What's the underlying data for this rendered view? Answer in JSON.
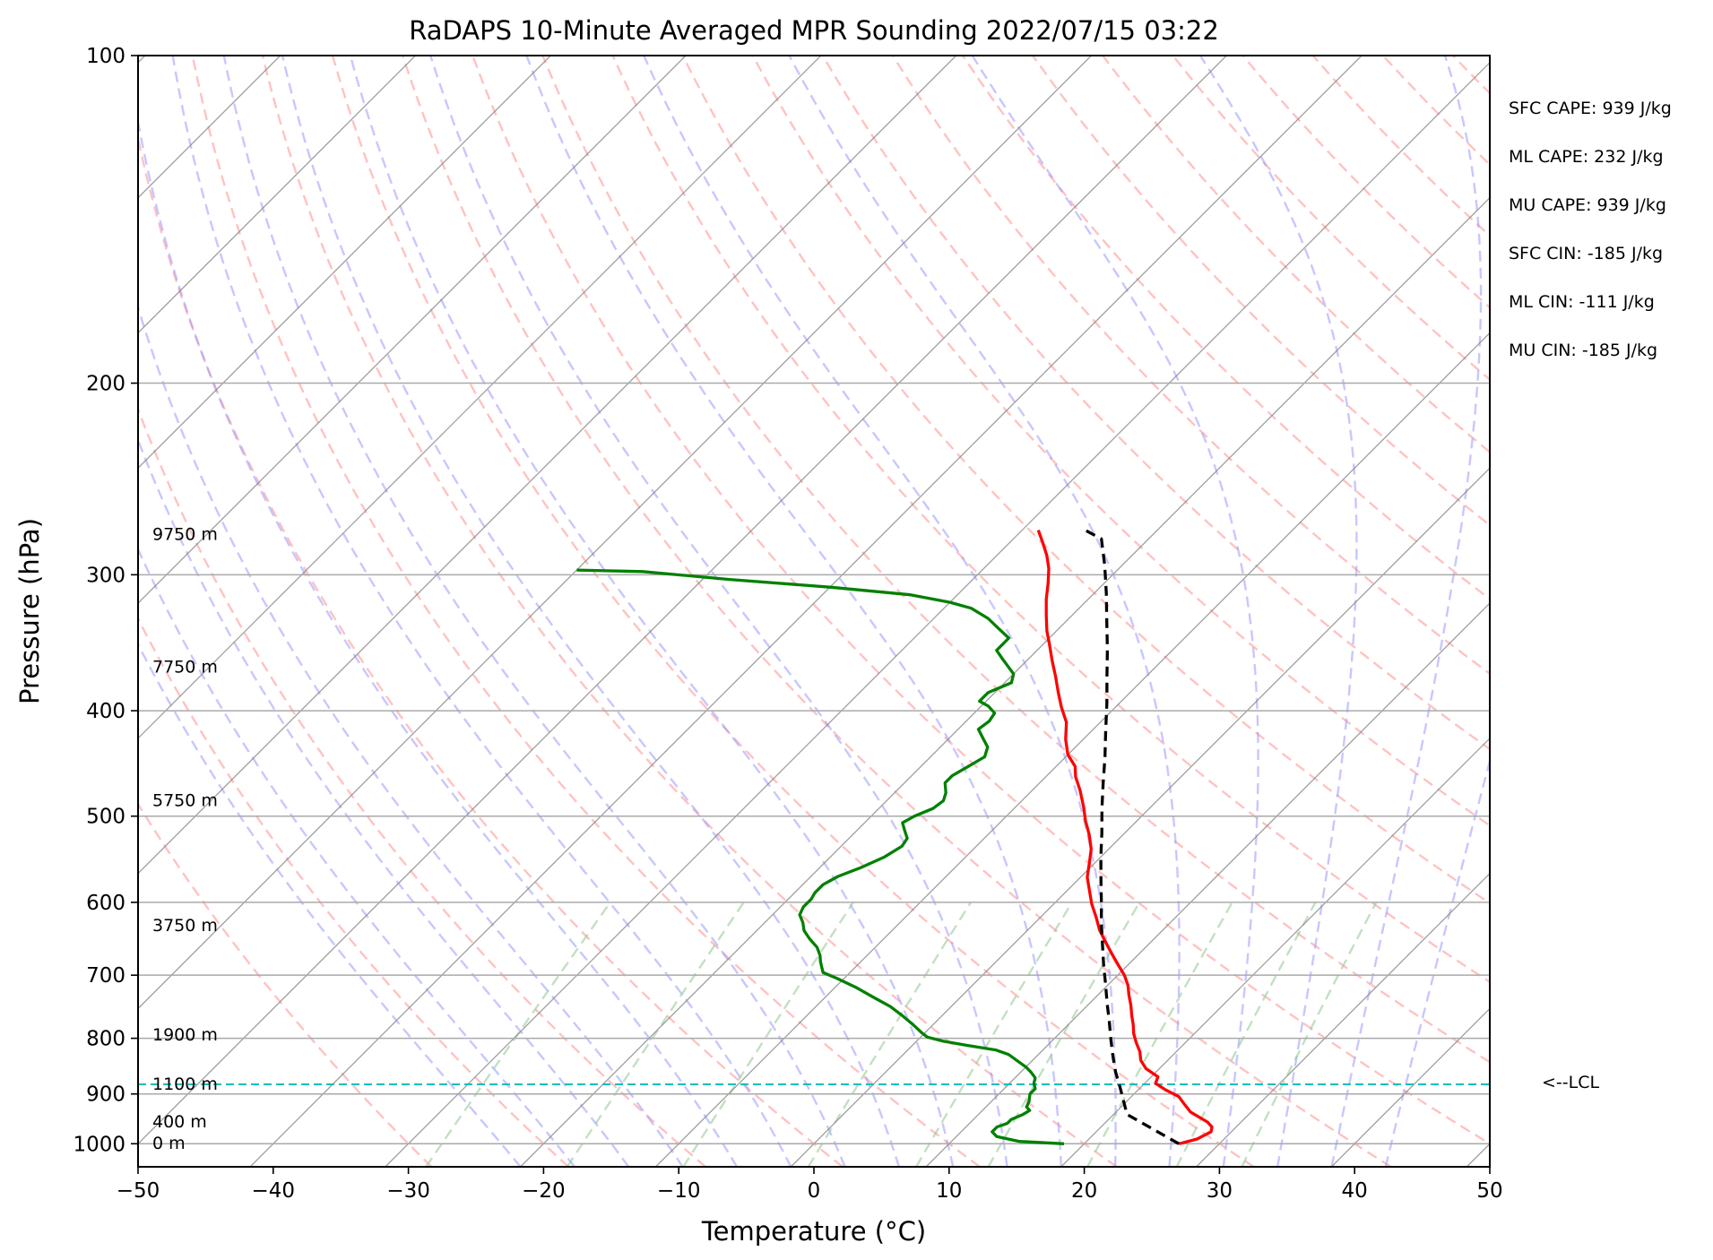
{
  "chart_data": {
    "type": "line",
    "subtype": "skew-t log-p sounding",
    "title": "RaDAPS 10-Minute Averaged MPR Sounding 2022/07/15 03:22",
    "xlabel": "Temperature (°C)",
    "ylabel": "Pressure (hPa)",
    "xlim": [
      -50,
      50
    ],
    "ylim": [
      1050,
      100
    ],
    "y_scale": "log",
    "x_ticks": [
      "−50",
      "−40",
      "−30",
      "−20",
      "−10",
      "0",
      "10",
      "20",
      "30",
      "40",
      "50"
    ],
    "y_ticks": [
      "100",
      "200",
      "300",
      "400",
      "500",
      "600",
      "700",
      "800",
      "900",
      "1000"
    ],
    "grid": true,
    "series": [
      {
        "name": "",
        "role": "temperature",
        "color": "#ff0000",
        "style": "solid",
        "points": [
          [
            27.0,
            1000
          ],
          [
            28.0,
            990
          ],
          [
            28.5,
            975
          ],
          [
            28.2,
            965
          ],
          [
            27.5,
            955
          ],
          [
            26.5,
            945
          ],
          [
            25.5,
            935
          ],
          [
            24.5,
            920
          ],
          [
            23.5,
            905
          ],
          [
            22.0,
            892
          ],
          [
            20.8,
            880
          ],
          [
            20.5,
            868
          ],
          [
            19.0,
            853
          ],
          [
            18.0,
            838
          ],
          [
            17.3,
            823
          ],
          [
            16.4,
            808
          ],
          [
            15.5,
            792
          ],
          [
            14.8,
            777
          ],
          [
            14.0,
            762
          ],
          [
            13.2,
            746
          ],
          [
            12.3,
            730
          ],
          [
            11.5,
            715
          ],
          [
            10.5,
            700
          ],
          [
            9.2,
            684
          ],
          [
            7.9,
            668
          ],
          [
            6.6,
            652
          ],
          [
            5.3,
            636
          ],
          [
            4.1,
            619
          ],
          [
            2.8,
            602
          ],
          [
            1.7,
            586
          ],
          [
            0.5,
            569
          ],
          [
            -0.4,
            552
          ],
          [
            -1.3,
            536
          ],
          [
            -2.5,
            520
          ],
          [
            -3.8,
            505
          ],
          [
            -5.0,
            490
          ],
          [
            -6.5,
            473
          ],
          [
            -7.8,
            460
          ],
          [
            -8.6,
            450
          ],
          [
            -10.0,
            439
          ],
          [
            -11.3,
            425
          ],
          [
            -12.5,
            410
          ],
          [
            -14.0,
            397
          ],
          [
            -15.3,
            385
          ],
          [
            -16.7,
            372
          ],
          [
            -18.1,
            360
          ],
          [
            -19.6,
            347
          ],
          [
            -20.7,
            338
          ],
          [
            -21.9,
            327
          ],
          [
            -23.1,
            316
          ],
          [
            -24.2,
            305
          ],
          [
            -25.2,
            296
          ],
          [
            -26.3,
            288
          ],
          [
            -27.6,
            280
          ],
          [
            -28.8,
            273
          ]
        ]
      },
      {
        "name": "",
        "role": "dewpoint",
        "color": "#008000",
        "style": "solid",
        "points": [
          [
            18.5,
            1000
          ],
          [
            15.0,
            995
          ],
          [
            13.0,
            985
          ],
          [
            12.3,
            975
          ],
          [
            12.3,
            965
          ],
          [
            12.8,
            958
          ],
          [
            12.8,
            950
          ],
          [
            13.3,
            940
          ],
          [
            13.5,
            932
          ],
          [
            13.0,
            925
          ],
          [
            12.8,
            915
          ],
          [
            12.3,
            900
          ],
          [
            12.3,
            890
          ],
          [
            11.8,
            880
          ],
          [
            11.5,
            870
          ],
          [
            10.8,
            860
          ],
          [
            10.0,
            850
          ],
          [
            9.0,
            840
          ],
          [
            7.8,
            828
          ],
          [
            6.5,
            820
          ],
          [
            4.0,
            812
          ],
          [
            2.0,
            805
          ],
          [
            0.5,
            798
          ],
          [
            -0.3,
            790
          ],
          [
            -1.5,
            777
          ],
          [
            -3.0,
            762
          ],
          [
            -4.5,
            748
          ],
          [
            -6.5,
            733
          ],
          [
            -8.5,
            718
          ],
          [
            -10.5,
            705
          ],
          [
            -12.0,
            696
          ],
          [
            -12.5,
            688
          ],
          [
            -13.0,
            680
          ],
          [
            -13.5,
            671
          ],
          [
            -14.3,
            660
          ],
          [
            -15.5,
            648
          ],
          [
            -16.5,
            637
          ],
          [
            -17.2,
            626
          ],
          [
            -18.0,
            616
          ],
          [
            -18.3,
            606
          ],
          [
            -18.3,
            596
          ],
          [
            -18.5,
            588
          ],
          [
            -18.5,
            578
          ],
          [
            -18.0,
            568
          ],
          [
            -17.0,
            558
          ],
          [
            -16.0,
            545
          ],
          [
            -15.5,
            533
          ],
          [
            -15.7,
            524
          ],
          [
            -16.5,
            515
          ],
          [
            -17.2,
            507
          ],
          [
            -16.8,
            500
          ],
          [
            -16.0,
            492
          ],
          [
            -15.8,
            484
          ],
          [
            -16.2,
            476
          ],
          [
            -17.0,
            466
          ],
          [
            -17.0,
            459
          ],
          [
            -16.5,
            450
          ],
          [
            -16.0,
            441
          ],
          [
            -16.5,
            432
          ],
          [
            -17.5,
            424
          ],
          [
            -18.5,
            416
          ],
          [
            -18.3,
            409
          ],
          [
            -18.5,
            402
          ],
          [
            -19.5,
            396
          ],
          [
            -20.5,
            392
          ],
          [
            -20.5,
            385
          ],
          [
            -19.5,
            377
          ],
          [
            -20.0,
            370
          ],
          [
            -21.0,
            364
          ],
          [
            -22.0,
            358
          ],
          [
            -23.0,
            352
          ],
          [
            -23.0,
            343
          ],
          [
            -24.5,
            336
          ],
          [
            -26.0,
            329
          ],
          [
            -28.0,
            322
          ],
          [
            -30.0,
            318
          ],
          [
            -33.5,
            313
          ],
          [
            -40.0,
            308
          ],
          [
            -48.0,
            303
          ],
          [
            -55.0,
            298
          ],
          [
            -60.0,
            297
          ]
        ]
      },
      {
        "name": "",
        "role": "parcel",
        "color": "#000000",
        "style": "dashed",
        "points": [
          [
            27.0,
            1000
          ],
          [
            21.0,
            940
          ],
          [
            18.5,
            888
          ],
          [
            17.0,
            859
          ],
          [
            15.6,
            830
          ],
          [
            14.2,
            801
          ],
          [
            12.8,
            772
          ],
          [
            11.3,
            743
          ],
          [
            9.8,
            714
          ],
          [
            8.2,
            685
          ],
          [
            6.6,
            656
          ],
          [
            5.0,
            628
          ],
          [
            3.4,
            600
          ],
          [
            1.7,
            572
          ],
          [
            0.0,
            545
          ],
          [
            -1.7,
            518
          ],
          [
            -3.5,
            492
          ],
          [
            -5.3,
            466
          ],
          [
            -7.1,
            441
          ],
          [
            -9.0,
            417
          ],
          [
            -10.9,
            394
          ],
          [
            -12.9,
            372
          ],
          [
            -14.9,
            351
          ],
          [
            -17.0,
            331
          ],
          [
            -19.1,
            312
          ],
          [
            -21.3,
            294
          ],
          [
            -23.5,
            278
          ],
          [
            -25.7,
            272
          ]
        ]
      }
    ],
    "height_labels": [
      {
        "label": "9750 m",
        "p": 275
      },
      {
        "label": "7750 m",
        "p": 364
      },
      {
        "label": "5750 m",
        "p": 483
      },
      {
        "label": "3750 m",
        "p": 629
      },
      {
        "label": "1900 m",
        "p": 793
      },
      {
        "label": "1100 m",
        "p": 880
      },
      {
        "label": "400 m",
        "p": 953
      },
      {
        "label": "0 m",
        "p": 998
      }
    ],
    "lcl": {
      "label": "<--LCL",
      "p": 882
    },
    "stats": [
      "SFC CAPE: 939 J/kg",
      "ML CAPE: 232 J/kg",
      "MU CAPE: 939 J/kg",
      "SFC CIN: -185 J/kg",
      "ML CIN: -111 J/kg",
      "MU CIN: -185 J/kg"
    ],
    "background_lines": {
      "dry_adiabats": "#ff9999",
      "moist_adiabats": "#9999ff",
      "mixing_ratio": "#99cc99",
      "isotherms": "#888888",
      "lcl_line": "#00bfbf"
    }
  }
}
